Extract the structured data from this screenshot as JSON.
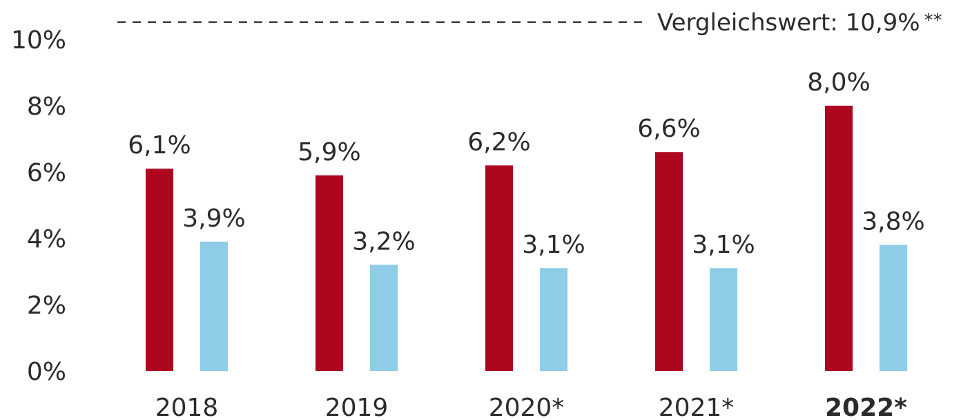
{
  "chart_data": {
    "type": "bar",
    "categories": [
      "2018",
      "2019",
      "2020*",
      "2021*",
      "2022*"
    ],
    "bold_categories": [
      "2022*"
    ],
    "series": [
      {
        "values": [
          6.1,
          5.9,
          6.2,
          6.6,
          8.0
        ],
        "color": "#ad0720"
      },
      {
        "values": [
          3.9,
          3.2,
          3.1,
          3.1,
          3.8
        ],
        "color": "#8ecce8"
      }
    ],
    "data_labels": [
      [
        "6,1%",
        "5,9%",
        "6,2%",
        "6,6%",
        "8,0%"
      ],
      [
        "3,9%",
        "3,2%",
        "3,1%",
        "3,1%",
        "3,8%"
      ]
    ],
    "ylim": [
      0,
      10
    ],
    "yticks": [
      0,
      2,
      4,
      6,
      8,
      10
    ],
    "ytick_labels": [
      "0%",
      "2%",
      "4%",
      "6%",
      "8%",
      "10%"
    ],
    "reference_line": {
      "value": 10.9,
      "label": "Vergleichswert: 10,9%",
      "footnote_mark": "**",
      "style": "dashed"
    },
    "grid": false,
    "legend": "none",
    "title": "",
    "xlabel": "",
    "ylabel": ""
  }
}
